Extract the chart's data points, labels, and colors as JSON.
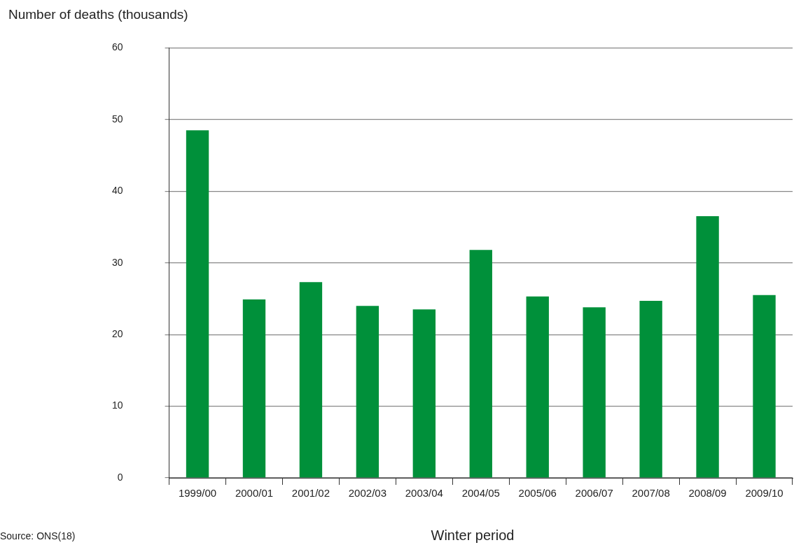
{
  "chart_data": {
    "type": "bar",
    "ylabel": "Number of deaths (thousands)",
    "xlabel": "Winter period",
    "annotations": [
      "Source: ONS(18)"
    ],
    "categories": [
      "1999/00",
      "2000/01",
      "2001/02",
      "2002/03",
      "2003/04",
      "2004/05",
      "2005/06",
      "2006/07",
      "2007/08",
      "2008/09",
      "2009/10"
    ],
    "values": [
      48.5,
      24.9,
      27.3,
      24.0,
      23.5,
      31.8,
      25.3,
      23.8,
      24.7,
      36.5,
      25.5
    ],
    "color": "#00903a",
    "ylim": [
      0,
      60
    ],
    "yticks": [
      0,
      10,
      20,
      30,
      40,
      50,
      60
    ],
    "grid": "y"
  }
}
